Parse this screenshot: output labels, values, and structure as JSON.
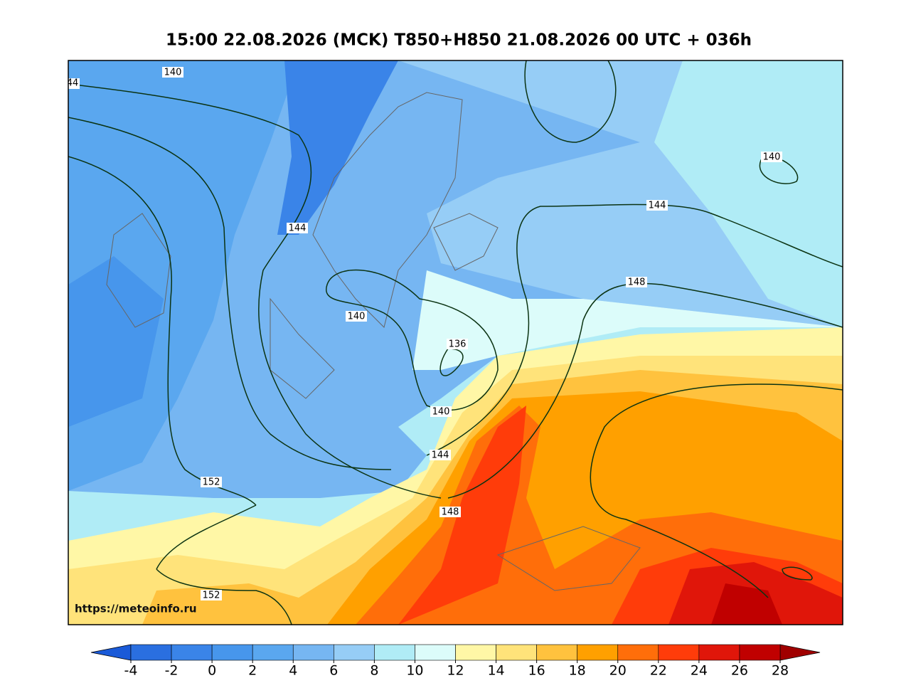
{
  "title": "15:00 22.08.2026 (MCK) T850+H850 21.08.2026 00 UTC + 036h",
  "source_url": "https://meteoinfo.ru",
  "contour_labels": [
    44,
    140,
    140,
    144,
    144,
    140,
    136,
    140,
    148,
    144,
    148,
    152,
    152
  ],
  "colorbar": {
    "ticks": [
      -4,
      -2,
      0,
      2,
      4,
      6,
      8,
      10,
      12,
      14,
      16,
      18,
      20,
      22,
      24,
      26,
      28
    ],
    "colors": [
      "#2a6fe0",
      "#3a84e8",
      "#4796ec",
      "#5aa7ef",
      "#76b6f2",
      "#96cdf6",
      "#b0ecf6",
      "#dcfcfa",
      "#fff7a6",
      "#ffe37a",
      "#ffc23e",
      "#ffa000",
      "#ff6e0a",
      "#ff3c0a",
      "#e0160a",
      "#c00000"
    ],
    "under_color": "#1a5ad8",
    "over_color": "#a00000"
  }
}
